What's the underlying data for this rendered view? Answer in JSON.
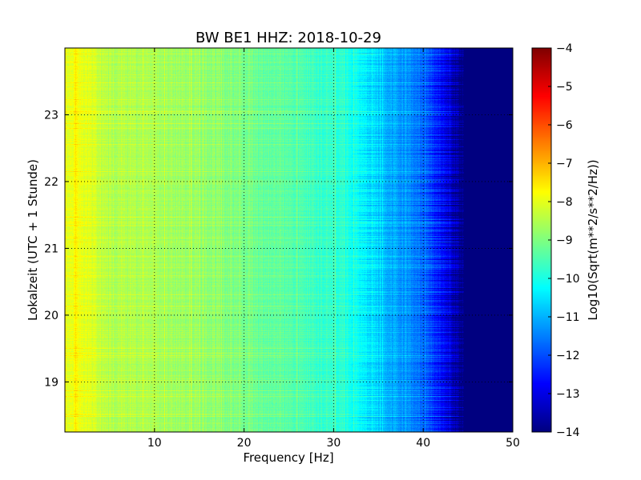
{
  "chart_data": {
    "type": "heatmap",
    "title": "BW BE1 HHZ: 2018-10-29",
    "xlabel": "Frequency [Hz]",
    "ylabel": "Lokalzeit (UTC + 1 Stunde)",
    "colorbar_label": "Log10(Sqrt(m**2/s**2/Hz))",
    "colormap": "jet",
    "grid": true,
    "xlim": [
      0,
      50
    ],
    "ylim": [
      24.0,
      18.25
    ],
    "clim": [
      -14,
      -4
    ],
    "x_ticks": [
      10,
      20,
      30,
      40,
      50
    ],
    "x_tick_labels": [
      "10",
      "20",
      "30",
      "40",
      "50"
    ],
    "y_ticks": [
      19,
      20,
      21,
      22,
      23
    ],
    "y_tick_labels": [
      "19",
      "20",
      "21",
      "22",
      "23"
    ],
    "cbar_ticks": [
      -4,
      -5,
      -6,
      -7,
      -8,
      -9,
      -10,
      -11,
      -12,
      -13,
      -14
    ],
    "cbar_tick_labels": [
      "−4",
      "−5",
      "−6",
      "−7",
      "−8",
      "−9",
      "−10",
      "−11",
      "−12",
      "−13",
      "−14"
    ],
    "spectrum_profile": {
      "frequency_hz": [
        0.5,
        1,
        5,
        10,
        15,
        20,
        25,
        30,
        33,
        35,
        38,
        40,
        42,
        43.5,
        44.5,
        50
      ],
      "log10_amplitude": [
        -8.0,
        -7.8,
        -8.5,
        -8.6,
        -8.8,
        -9.1,
        -9.4,
        -9.8,
        -10.2,
        -10.8,
        -11.3,
        -11.7,
        -12.6,
        -13.5,
        -14.0,
        -14.0
      ]
    }
  }
}
